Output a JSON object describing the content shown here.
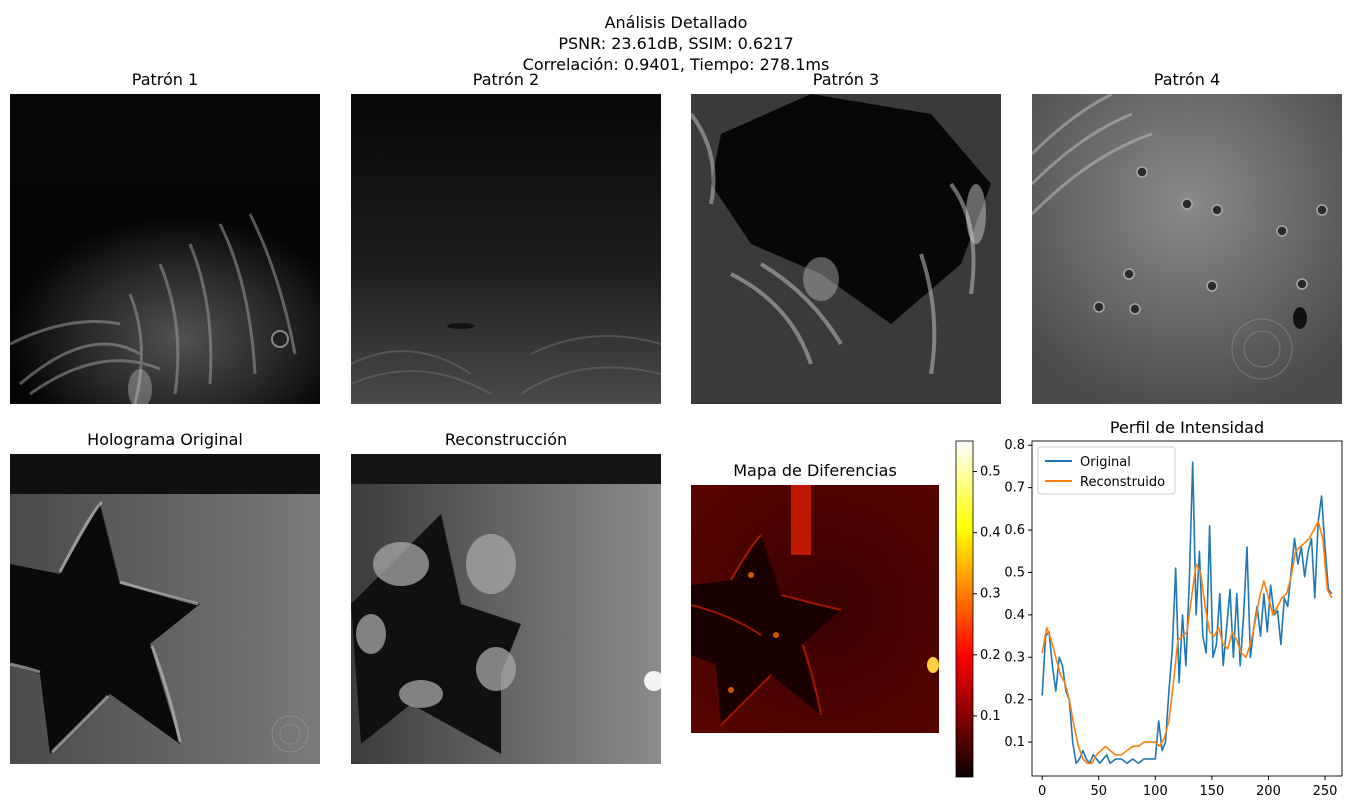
{
  "figure": {
    "title_line1": "Análisis Detallado",
    "title_line2": "PSNR: 23.61dB, SSIM: 0.6217",
    "title_line3": "Correlación: 0.9401, Tiempo: 278.1ms"
  },
  "panels": {
    "pattern1": "Patrón 1",
    "pattern2": "Patrón 2",
    "pattern3": "Patrón 3",
    "pattern4": "Patrón 4",
    "original": "Holograma Original",
    "reconstruction": "Reconstrucción",
    "diffmap": "Mapa de Diferencias"
  },
  "colorbar": {
    "colormap": "hot",
    "range": [
      0.0,
      0.55
    ],
    "ticks": [
      "0.1",
      "0.2",
      "0.3",
      "0.4",
      "0.5"
    ],
    "tick_values": [
      0.1,
      0.2,
      0.3,
      0.4,
      0.5
    ]
  },
  "chart_data": {
    "type": "line",
    "title": "Perfil de Intensidad",
    "xlabel": "",
    "ylabel": "",
    "xlim": [
      -9,
      265
    ],
    "ylim": [
      0.02,
      0.81
    ],
    "xticks": [
      0,
      50,
      100,
      150,
      200,
      250
    ],
    "yticks": [
      0.1,
      0.2,
      0.3,
      0.4,
      0.5,
      0.6,
      0.7,
      0.8
    ],
    "legend_position": "top-left",
    "grid": false,
    "series": [
      {
        "name": "Original",
        "color": "#1f77b4",
        "x": [
          0,
          3,
          6,
          9,
          12,
          15,
          18,
          21,
          24,
          27,
          30,
          33,
          36,
          39,
          42,
          45,
          48,
          51,
          54,
          57,
          60,
          65,
          70,
          75,
          80,
          85,
          90,
          95,
          100,
          103,
          106,
          109,
          112,
          115,
          118,
          121,
          124,
          127,
          130,
          133,
          136,
          139,
          142,
          145,
          148,
          151,
          154,
          157,
          160,
          163,
          166,
          169,
          172,
          175,
          178,
          181,
          184,
          187,
          190,
          193,
          196,
          199,
          202,
          205,
          208,
          211,
          214,
          217,
          220,
          223,
          226,
          229,
          232,
          235,
          238,
          241,
          244,
          247,
          250,
          253,
          256
        ],
        "y": [
          0.21,
          0.35,
          0.36,
          0.28,
          0.22,
          0.3,
          0.28,
          0.22,
          0.2,
          0.1,
          0.05,
          0.06,
          0.08,
          0.06,
          0.05,
          0.07,
          0.06,
          0.05,
          0.06,
          0.07,
          0.05,
          0.06,
          0.06,
          0.05,
          0.06,
          0.05,
          0.06,
          0.06,
          0.06,
          0.15,
          0.08,
          0.1,
          0.22,
          0.32,
          0.51,
          0.24,
          0.4,
          0.28,
          0.48,
          0.76,
          0.4,
          0.55,
          0.35,
          0.31,
          0.61,
          0.3,
          0.33,
          0.45,
          0.28,
          0.37,
          0.46,
          0.3,
          0.45,
          0.28,
          0.4,
          0.56,
          0.3,
          0.37,
          0.42,
          0.35,
          0.45,
          0.36,
          0.47,
          0.4,
          0.41,
          0.33,
          0.44,
          0.42,
          0.5,
          0.58,
          0.52,
          0.56,
          0.49,
          0.55,
          0.58,
          0.44,
          0.62,
          0.68,
          0.56,
          0.46,
          0.45
        ]
      },
      {
        "name": "Reconstruido",
        "color": "#ff7f0e",
        "x": [
          0,
          4,
          8,
          12,
          16,
          20,
          24,
          28,
          32,
          36,
          40,
          44,
          48,
          52,
          56,
          60,
          65,
          70,
          75,
          80,
          85,
          90,
          95,
          100,
          104,
          108,
          112,
          116,
          120,
          124,
          128,
          132,
          136,
          140,
          144,
          148,
          152,
          156,
          160,
          164,
          168,
          172,
          176,
          180,
          184,
          188,
          192,
          196,
          200,
          204,
          208,
          212,
          216,
          220,
          224,
          228,
          232,
          236,
          240,
          244,
          248,
          252,
          256
        ],
        "y": [
          0.31,
          0.37,
          0.34,
          0.3,
          0.26,
          0.24,
          0.2,
          0.14,
          0.09,
          0.06,
          0.05,
          0.05,
          0.07,
          0.08,
          0.09,
          0.08,
          0.07,
          0.07,
          0.08,
          0.09,
          0.09,
          0.1,
          0.1,
          0.1,
          0.09,
          0.11,
          0.15,
          0.24,
          0.34,
          0.35,
          0.36,
          0.44,
          0.52,
          0.5,
          0.42,
          0.36,
          0.35,
          0.37,
          0.33,
          0.32,
          0.36,
          0.34,
          0.31,
          0.3,
          0.33,
          0.38,
          0.44,
          0.48,
          0.44,
          0.4,
          0.42,
          0.44,
          0.45,
          0.49,
          0.55,
          0.56,
          0.57,
          0.58,
          0.6,
          0.62,
          0.58,
          0.46,
          0.44
        ]
      }
    ]
  }
}
